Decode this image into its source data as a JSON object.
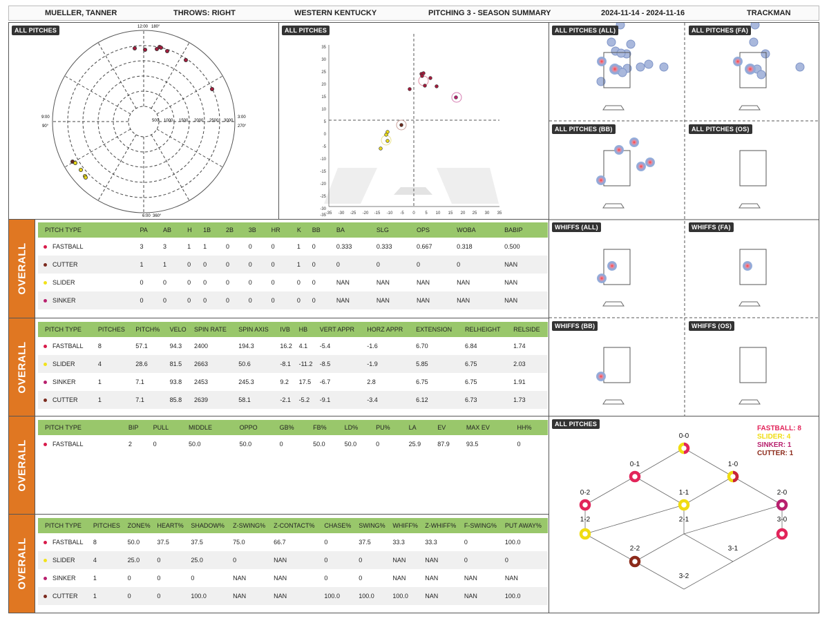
{
  "header": {
    "name": "MUELLER, TANNER",
    "throws": "THROWS: RIGHT",
    "team": "WESTERN KENTUCKY",
    "report": "PITCHING 3 - SEASON SUMMARY",
    "dates": "2024-11-14 - 2024-11-16",
    "source": "TRACKMAN"
  },
  "colors": {
    "fastball": "#d81b4b",
    "cutter": "#7b2a1e",
    "slider": "#f2e21a",
    "sinker": "#b8206e",
    "accent": "#e07722",
    "header_green": "#99c76b"
  },
  "labels": {
    "all_pitches": "ALL PITCHES",
    "all_pitches_all": "ALL PITCHES (ALL)",
    "all_pitches_fa": "ALL PITCHES (FA)",
    "all_pitches_bb": "ALL PITCHES (BB)",
    "all_pitches_os": "ALL PITCHES (OS)",
    "whiffs_all": "WHIFFS (ALL)",
    "whiffs_fa": "WHIFFS (FA)",
    "whiffs_bb": "WHIFFS (BB)",
    "whiffs_os": "WHIFFS (OS)",
    "overall": "OVERALL"
  },
  "polar": {
    "clock": [
      "12:00",
      "3:00",
      "6:00",
      "9:00"
    ],
    "degrees": [
      "180°",
      "270°",
      "360°",
      "90°"
    ],
    "rings": [
      "500",
      "1000",
      "1500",
      "2000",
      "2500",
      "3000"
    ]
  },
  "movement": {
    "x_ticks": [
      "-35",
      "-30",
      "-25",
      "-20",
      "-15",
      "-10",
      "-5",
      "0",
      "5",
      "10",
      "15",
      "20",
      "25",
      "30",
      "35"
    ],
    "y_ticks": [
      "35",
      "30",
      "25",
      "20",
      "15",
      "10",
      "5",
      "0",
      "-5",
      "-10",
      "-15",
      "-20",
      "-25",
      "-30",
      "-35"
    ]
  },
  "table1": {
    "headers": [
      "PITCH TYPE",
      "PA",
      "AB",
      "H",
      "1B",
      "2B",
      "3B",
      "HR",
      "K",
      "BB",
      "BA",
      "SLG",
      "OPS",
      "WOBA",
      "BABIP"
    ],
    "rows": [
      [
        "FASTBALL",
        "3",
        "3",
        "1",
        "1",
        "0",
        "0",
        "0",
        "1",
        "0",
        "0.333",
        "0.333",
        "0.667",
        "0.318",
        "0.500"
      ],
      [
        "CUTTER",
        "1",
        "1",
        "0",
        "0",
        "0",
        "0",
        "0",
        "1",
        "0",
        "0",
        "0",
        "0",
        "0",
        "NAN"
      ],
      [
        "SLIDER",
        "0",
        "0",
        "0",
        "0",
        "0",
        "0",
        "0",
        "0",
        "0",
        "NAN",
        "NAN",
        "NAN",
        "NAN",
        "NAN"
      ],
      [
        "SINKER",
        "0",
        "0",
        "0",
        "0",
        "0",
        "0",
        "0",
        "0",
        "0",
        "NAN",
        "NAN",
        "NAN",
        "NAN",
        "NAN"
      ]
    ]
  },
  "table2": {
    "headers": [
      "PITCH TYPE",
      "PITCHES",
      "PITCH%",
      "VELO",
      "SPIN RATE",
      "SPIN AXIS",
      "IVB",
      "HB",
      "VERT APPR",
      "HORZ APPR",
      "EXTENSION",
      "RELHEIGHT",
      "RELSIDE"
    ],
    "rows": [
      [
        "FASTBALL",
        "8",
        "57.1",
        "94.3",
        "2400",
        "194.3",
        "16.2",
        "4.1",
        "-5.4",
        "-1.6",
        "6.70",
        "6.84",
        "1.74"
      ],
      [
        "SLIDER",
        "4",
        "28.6",
        "81.5",
        "2663",
        "50.6",
        "-8.1",
        "-11.2",
        "-8.5",
        "-1.9",
        "5.85",
        "6.75",
        "2.03"
      ],
      [
        "SINKER",
        "1",
        "7.1",
        "93.8",
        "2453",
        "245.3",
        "9.2",
        "17.5",
        "-6.7",
        "2.8",
        "6.75",
        "6.75",
        "1.91"
      ],
      [
        "CUTTER",
        "1",
        "7.1",
        "85.8",
        "2639",
        "58.1",
        "-2.1",
        "-5.2",
        "-9.1",
        "-3.4",
        "6.12",
        "6.73",
        "1.73"
      ]
    ]
  },
  "table3": {
    "headers": [
      "PITCH TYPE",
      "BIP",
      "PULL",
      "MIDDLE",
      "OPPO",
      "GB%",
      "FB%",
      "LD%",
      "PU%",
      "LA",
      "EV",
      "MAX EV",
      "HH%"
    ],
    "rows": [
      [
        "FASTBALL",
        "2",
        "0",
        "50.0",
        "50.0",
        "0",
        "50.0",
        "50.0",
        "0",
        "25.9",
        "87.9",
        "93.5",
        "0"
      ]
    ]
  },
  "table4": {
    "headers": [
      "PITCH TYPE",
      "PITCHES",
      "ZONE%",
      "HEART%",
      "SHADOW%",
      "Z-SWING%",
      "Z-CONTACT%",
      "CHASE%",
      "SWING%",
      "WHIFF%",
      "Z-WHIFF%",
      "F-SWING%",
      "PUT AWAY%"
    ],
    "rows": [
      [
        "FASTBALL",
        "8",
        "50.0",
        "37.5",
        "37.5",
        "75.0",
        "66.7",
        "0",
        "37.5",
        "33.3",
        "33.3",
        "0",
        "100.0"
      ],
      [
        "SLIDER",
        "4",
        "25.0",
        "0",
        "25.0",
        "0",
        "NAN",
        "0",
        "0",
        "NAN",
        "NAN",
        "0",
        "0"
      ],
      [
        "SINKER",
        "1",
        "0",
        "0",
        "0",
        "NAN",
        "NAN",
        "0",
        "0",
        "NAN",
        "NAN",
        "NAN",
        "NAN"
      ],
      [
        "CUTTER",
        "1",
        "0",
        "0",
        "100.0",
        "NAN",
        "NAN",
        "100.0",
        "100.0",
        "100.0",
        "NAN",
        "NAN",
        "100.0"
      ]
    ]
  },
  "count_legend": [
    "FASTBALL: 8",
    "SLIDER: 4",
    "SINKER: 1",
    "CUTTER: 1"
  ],
  "counts": [
    "0-0",
    "0-1",
    "1-0",
    "0-2",
    "1-1",
    "2-0",
    "1-2",
    "2-1",
    "3-0",
    "2-2",
    "3-1",
    "3-2"
  ]
}
